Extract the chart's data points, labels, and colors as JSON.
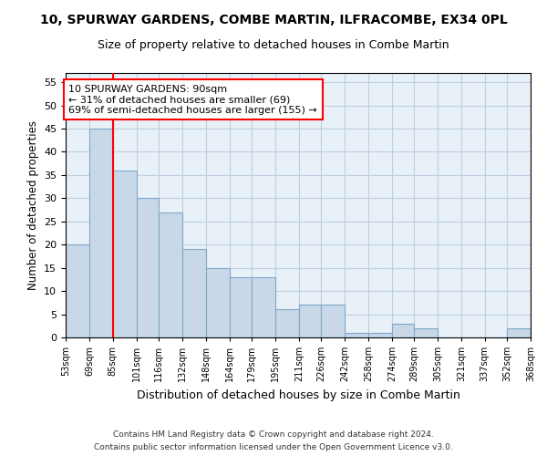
{
  "title": "10, SPURWAY GARDENS, COMBE MARTIN, ILFRACOMBE, EX34 0PL",
  "subtitle": "Size of property relative to detached houses in Combe Martin",
  "xlabel": "Distribution of detached houses by size in Combe Martin",
  "ylabel": "Number of detached properties",
  "bar_color": "#c8d8e8",
  "bar_edge_color": "#7fa8c8",
  "bar_edge_width": 0.8,
  "grid_color": "#c0cfe0",
  "bg_color": "#e8f0f8",
  "vline_x": 85,
  "vline_color": "red",
  "annotation_text": "10 SPURWAY GARDENS: 90sqm\n← 31% of detached houses are smaller (69)\n69% of semi-detached houses are larger (155) →",
  "annotation_box_color": "white",
  "annotation_box_edge": "red",
  "ylim": [
    0,
    57
  ],
  "yticks": [
    0,
    5,
    10,
    15,
    20,
    25,
    30,
    35,
    40,
    45,
    50,
    55
  ],
  "bins": [
    53,
    69,
    85,
    101,
    116,
    132,
    148,
    164,
    179,
    195,
    211,
    226,
    242,
    258,
    274,
    289,
    305,
    321,
    337,
    352,
    368
  ],
  "values": [
    20,
    45,
    36,
    30,
    27,
    19,
    15,
    13,
    13,
    6,
    7,
    7,
    1,
    1,
    3,
    2,
    0,
    0,
    0,
    2
  ],
  "footer1": "Contains HM Land Registry data © Crown copyright and database right 2024.",
  "footer2": "Contains public sector information licensed under the Open Government Licence v3.0."
}
